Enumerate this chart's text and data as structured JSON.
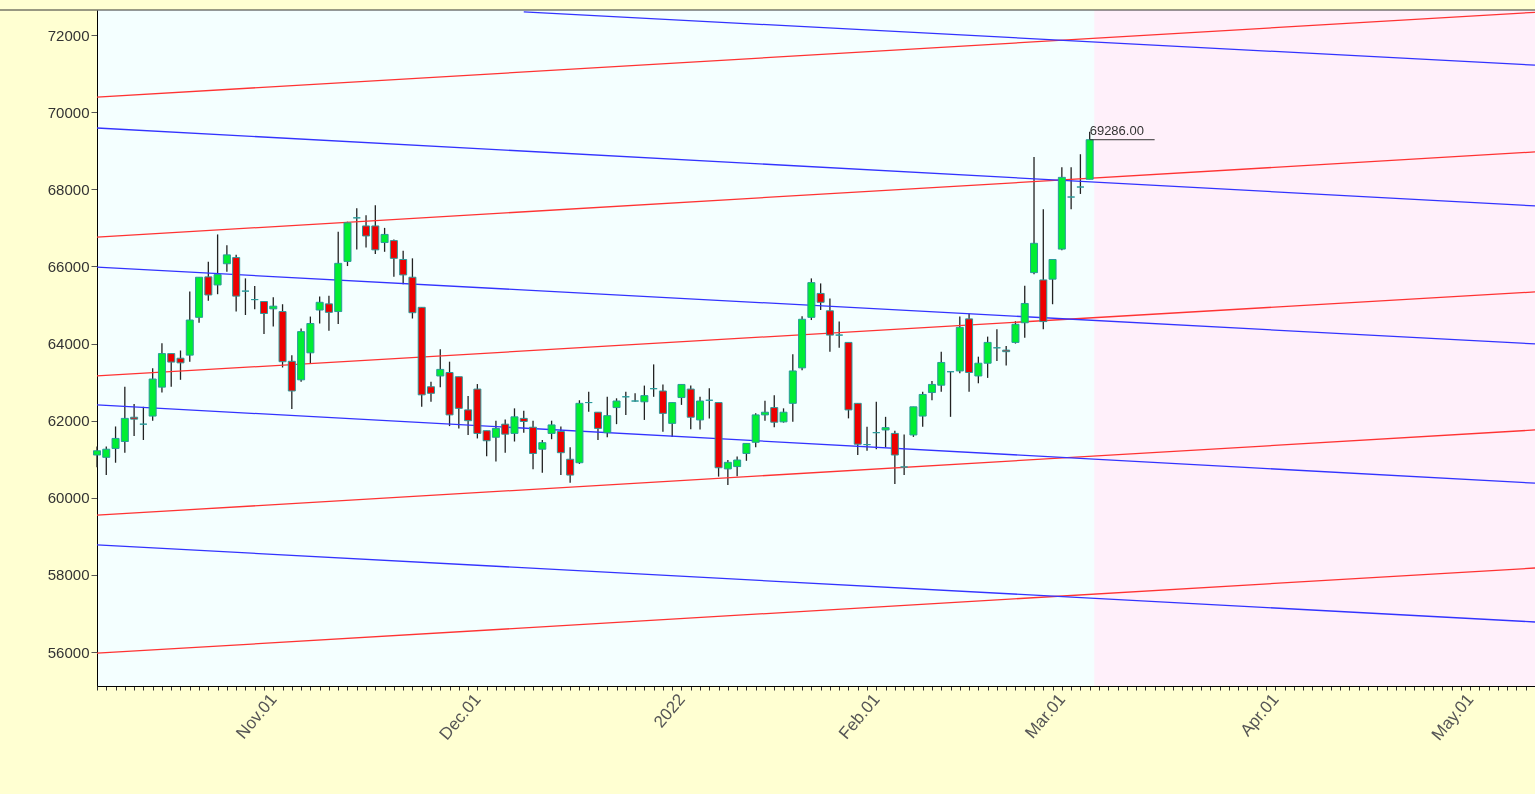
{
  "chart_data": {
    "type": "candlestick",
    "categories": [
      null,
      null,
      null,
      null,
      null,
      null,
      null,
      null,
      null,
      null,
      null,
      null,
      null,
      null,
      null,
      null,
      null,
      null,
      null,
      "Nov.01",
      null,
      null,
      null,
      null,
      null,
      null,
      null,
      null,
      null,
      null,
      null,
      null,
      null,
      null,
      null,
      null,
      null,
      null,
      null,
      null,
      null,
      "Dec.01",
      null,
      null,
      null,
      null,
      null,
      null,
      null,
      null,
      null,
      null,
      null,
      null,
      null,
      null,
      null,
      null,
      null,
      null,
      null,
      null,
      null,
      "2022",
      null,
      null,
      null,
      null,
      null,
      null,
      null,
      null,
      null,
      null,
      null,
      null,
      null,
      null,
      null,
      null,
      null,
      null,
      null,
      null,
      "Feb.01",
      null,
      null,
      null,
      null,
      null,
      null,
      null,
      null,
      null,
      null,
      null,
      null,
      null,
      null,
      null,
      null,
      null,
      null,
      null,
      "Mar.01",
      null,
      null,
      null,
      null,
      null,
      null,
      null,
      null,
      null,
      null,
      null,
      null,
      null,
      null,
      null,
      null,
      null,
      null,
      null,
      null,
      null,
      null,
      "Apr.01",
      null,
      null,
      null,
      null,
      null,
      null,
      null,
      null,
      null,
      null,
      null,
      null,
      null,
      null,
      null,
      null,
      null,
      null,
      null,
      null,
      "May.01",
      null,
      null,
      null,
      null,
      null,
      null,
      null
    ],
    "colors": [
      "#00ee33",
      "#00ee33",
      "#00ee33",
      "#00ee33",
      "#ee0000",
      "#339999",
      "#00ee33",
      "#00ee33",
      "#ee0000",
      "#ee0000",
      "#00ee33",
      "#00ee33",
      "#ee0000",
      "#00ee33",
      "#00ee33",
      "#ee0000",
      "#339999",
      "#339999",
      "#ee0000",
      "#00ee33",
      "#ee0000",
      "#ee0000",
      "#00ee33",
      "#00ee33",
      "#00ee33",
      "#ee0000",
      "#00ee33",
      "#00ee33",
      "#339999",
      "#ee0000",
      "#ee0000",
      "#00ee33",
      "#ee0000",
      "#ee0000",
      "#ee0000",
      "#ee0000",
      "#ee0000",
      "#00ee33",
      "#ee0000",
      "#ee0000",
      "#ee0000",
      "#ee0000",
      "#ee0000",
      "#00ee33",
      "#ee0000",
      "#00ee33",
      "#ee0000",
      "#ee0000",
      "#00ee33",
      "#00ee33",
      "#ee0000",
      "#ee0000",
      "#00ee33",
      "#339999",
      "#ee0000",
      "#00ee33",
      "#00ee33",
      "#339999",
      "#339999",
      "#00ee33",
      "#339999",
      "#ee0000",
      "#00ee33",
      "#00ee33",
      "#ee0000",
      "#00ee33",
      "#339999",
      "#ee0000",
      "#00ee33",
      "#00ee33",
      "#00ee33",
      "#00ee33",
      "#00ee33",
      "#ee0000",
      "#00ee33",
      "#00ee33",
      "#00ee33",
      "#00ee33",
      "#ee0000",
      "#ee0000",
      "#339999",
      "#ee0000",
      "#ee0000",
      "#339999",
      "#339999",
      "#00ee33",
      "#ee0000",
      "#339999",
      "#00ee33",
      "#00ee33",
      "#00ee33",
      "#00ee33",
      "#339999",
      "#00ee33",
      "#ee0000",
      "#00ee33",
      "#00ee33",
      "#339999",
      "#ee0000",
      "#00ee33",
      "#00ee33",
      "#00ee33",
      "#ee0000",
      "#00ee33",
      "#00ee33",
      "#339999",
      "#339999",
      "#00ee33",
      null,
      null,
      null,
      null,
      null,
      null,
      null,
      null,
      null,
      null,
      null,
      null,
      null,
      null,
      null,
      null,
      null,
      null,
      null,
      null,
      null,
      null,
      null,
      null,
      null,
      null,
      null,
      null,
      null,
      null,
      null,
      null,
      null,
      null,
      null,
      null,
      null,
      null,
      null,
      null,
      null,
      null,
      null,
      null,
      null,
      null,
      null,
      null
    ],
    "ohlc": [
      [
        61110,
        61330,
        60790,
        61220
      ],
      [
        61050,
        61330,
        60590,
        61260
      ],
      [
        61280,
        61850,
        60910,
        61540
      ],
      [
        61460,
        62880,
        61170,
        62060
      ],
      [
        62090,
        62430,
        61600,
        62040
      ],
      [
        61910,
        62360,
        61500,
        61910
      ],
      [
        62120,
        63360,
        62000,
        63080
      ],
      [
        62870,
        64010,
        62730,
        63740
      ],
      [
        63740,
        63740,
        62880,
        63520
      ],
      [
        63620,
        63820,
        63060,
        63500
      ],
      [
        63700,
        65350,
        63530,
        64610
      ],
      [
        64680,
        65720,
        64540,
        65720
      ],
      [
        65730,
        66120,
        65110,
        65260
      ],
      [
        65520,
        66830,
        65280,
        65790
      ],
      [
        66070,
        66550,
        65860,
        66300
      ],
      [
        66230,
        66300,
        64830,
        65230
      ],
      [
        65360,
        65690,
        64740,
        65360
      ],
      [
        65140,
        65490,
        64890,
        65140
      ],
      [
        65090,
        65090,
        64250,
        64780
      ],
      [
        64900,
        65200,
        64440,
        64970
      ],
      [
        64830,
        65020,
        63380,
        63530
      ],
      [
        63540,
        63700,
        62300,
        62770
      ],
      [
        63060,
        64390,
        63010,
        64310
      ],
      [
        63760,
        64700,
        63490,
        64520
      ],
      [
        64870,
        65220,
        64520,
        65070
      ],
      [
        65030,
        65240,
        64330,
        64810
      ],
      [
        64830,
        66900,
        64510,
        66080
      ],
      [
        66130,
        67160,
        66010,
        67130
      ],
      [
        67260,
        67510,
        66440,
        67260
      ],
      [
        67050,
        67330,
        66490,
        66790
      ],
      [
        67050,
        67590,
        66320,
        66430
      ],
      [
        66620,
        67000,
        66380,
        66830
      ],
      [
        66670,
        66700,
        65730,
        66210
      ],
      [
        66180,
        66410,
        65540,
        65780
      ],
      [
        65720,
        66210,
        64650,
        64800
      ],
      [
        64940,
        64940,
        62360,
        62670
      ],
      [
        62880,
        63010,
        62490,
        62710
      ],
      [
        63160,
        63850,
        62870,
        63330
      ],
      [
        63250,
        63530,
        61860,
        62150
      ],
      [
        63140,
        63140,
        61800,
        62320
      ],
      [
        62280,
        62640,
        61630,
        62000
      ],
      [
        62820,
        62950,
        61540,
        61670
      ],
      [
        61740,
        61740,
        61080,
        61480
      ],
      [
        61570,
        62000,
        60940,
        61800
      ],
      [
        61910,
        62030,
        61170,
        61650
      ],
      [
        61670,
        62320,
        61460,
        62100
      ],
      [
        62060,
        62260,
        61690,
        61980
      ],
      [
        61830,
        62000,
        60740,
        61150
      ],
      [
        61260,
        61500,
        60650,
        61430
      ],
      [
        61670,
        62000,
        61520,
        61890
      ],
      [
        61720,
        61850,
        60590,
        61170
      ],
      [
        61000,
        61310,
        60390,
        60590
      ],
      [
        60910,
        62530,
        60880,
        62450
      ],
      [
        62470,
        62750,
        62230,
        62470
      ],
      [
        62220,
        62220,
        61500,
        61800
      ],
      [
        61690,
        62620,
        61570,
        62130
      ],
      [
        62340,
        62580,
        61910,
        62510
      ],
      [
        62620,
        62750,
        62150,
        62620
      ],
      [
        62510,
        62710,
        62490,
        62510
      ],
      [
        62490,
        62910,
        62020,
        62650
      ],
      [
        62830,
        63460,
        62620,
        62830
      ],
      [
        62770,
        62940,
        61710,
        62190
      ],
      [
        61930,
        62470,
        61580,
        62470
      ],
      [
        62600,
        62940,
        62410,
        62940
      ],
      [
        62820,
        62910,
        61780,
        62090
      ],
      [
        62020,
        62620,
        61770,
        62510
      ],
      [
        62530,
        62840,
        62060,
        62530
      ],
      [
        62470,
        62470,
        60550,
        60780
      ],
      [
        60750,
        60980,
        60330,
        60920
      ],
      [
        60810,
        61070,
        60560,
        60980
      ],
      [
        61150,
        61410,
        60960,
        61410
      ],
      [
        61440,
        62190,
        61310,
        62150
      ],
      [
        62150,
        62520,
        62000,
        62220
      ],
      [
        62340,
        62660,
        61830,
        61960
      ],
      [
        61970,
        62320,
        61950,
        62220
      ],
      [
        62450,
        63720,
        61970,
        63290
      ],
      [
        63370,
        64710,
        63310,
        64630
      ],
      [
        64680,
        65690,
        64610,
        65580
      ],
      [
        65300,
        65560,
        64870,
        65070
      ],
      [
        64850,
        65170,
        63790,
        64220
      ],
      [
        64220,
        64570,
        63890,
        64220
      ],
      [
        64030,
        64030,
        62060,
        62280
      ],
      [
        62450,
        62450,
        61110,
        61390
      ],
      [
        61380,
        61840,
        61220,
        61380
      ],
      [
        61690,
        62490,
        61260,
        61690
      ],
      [
        61760,
        62100,
        61310,
        61820
      ],
      [
        61670,
        61740,
        60360,
        61110
      ],
      [
        60800,
        61640,
        60590,
        60800
      ],
      [
        61630,
        62360,
        61580,
        62360
      ],
      [
        62120,
        62750,
        61840,
        62680
      ],
      [
        62730,
        63030,
        62530,
        62940
      ],
      [
        62920,
        63790,
        62750,
        63510
      ],
      [
        63270,
        63280,
        62100,
        63270
      ],
      [
        63290,
        64700,
        63230,
        64420
      ],
      [
        64640,
        64780,
        62750,
        63250
      ],
      [
        63160,
        63660,
        62970,
        63490
      ],
      [
        63490,
        64180,
        63110,
        64030
      ],
      [
        63890,
        64370,
        63550,
        63890
      ],
      [
        63830,
        63940,
        63430,
        63790
      ],
      [
        64030,
        64580,
        64000,
        64500
      ],
      [
        64540,
        65500,
        64150,
        65040
      ],
      [
        65840,
        68840,
        65800,
        66600
      ],
      [
        65650,
        67480,
        64370,
        64570
      ],
      [
        65670,
        66180,
        65020,
        66180
      ],
      [
        66450,
        68570,
        66420,
        68310
      ],
      [
        67800,
        68570,
        67480,
        67800
      ],
      [
        68060,
        68910,
        67880,
        68060
      ],
      [
        68260,
        69490,
        68260,
        69286
      ],
      null,
      null,
      null,
      null,
      null,
      null,
      null,
      null,
      null,
      null,
      null,
      null,
      null,
      null,
      null,
      null,
      null,
      null,
      null,
      null,
      null,
      null,
      null,
      null,
      null,
      null,
      null,
      null,
      null,
      null,
      null,
      null,
      null,
      null,
      null,
      null,
      null,
      null,
      null,
      null,
      null,
      null,
      null,
      null,
      null,
      null,
      null,
      null
    ],
    "series": [
      {
        "type": "line",
        "color": "#ff3333",
        "values": [
          55970,
          null,
          null,
          null,
          null,
          null,
          null,
          null,
          null,
          null,
          null,
          null,
          null,
          null,
          null,
          null,
          null,
          null,
          null,
          null,
          null,
          null,
          null,
          null,
          null,
          null,
          null,
          null,
          null,
          null,
          null,
          null,
          null,
          null,
          null,
          null,
          null,
          null,
          null,
          null,
          null,
          null,
          null,
          null,
          null,
          null,
          null,
          null,
          null,
          null,
          null,
          null,
          null,
          null,
          null,
          null,
          null,
          null,
          null,
          null,
          null,
          null,
          null,
          null,
          null,
          null,
          null,
          null,
          null,
          null,
          null,
          null,
          null,
          null,
          null,
          null,
          null,
          null,
          null,
          null,
          null,
          null,
          null,
          null,
          null,
          null,
          null,
          null,
          null,
          null,
          null,
          null,
          null,
          null,
          null,
          null,
          null,
          null,
          null,
          null,
          null,
          null,
          null,
          null,
          null,
          null,
          null,
          null,
          null,
          null,
          null,
          null,
          null,
          null,
          null,
          null,
          null,
          null,
          null,
          null,
          null,
          null,
          null,
          null,
          null,
          null,
          null,
          null,
          null,
          null,
          null,
          null,
          null,
          null,
          null,
          null,
          null,
          null,
          null,
          null,
          null,
          null,
          null,
          null,
          null,
          null,
          null,
          null,
          null,
          null,
          null,
          null,
          null,
          null,
          null,
          58180
        ]
      },
      {
        "type": "line",
        "color": "#ff3333",
        "values": [
          59550,
          null,
          null,
          null,
          null,
          null,
          null,
          null,
          null,
          null,
          null,
          null,
          null,
          null,
          null,
          null,
          null,
          null,
          null,
          null,
          null,
          null,
          null,
          null,
          null,
          null,
          null,
          null,
          null,
          null,
          null,
          null,
          null,
          null,
          null,
          null,
          null,
          null,
          null,
          null,
          null,
          null,
          null,
          null,
          null,
          null,
          null,
          null,
          null,
          null,
          null,
          null,
          null,
          null,
          null,
          null,
          null,
          null,
          null,
          null,
          null,
          null,
          null,
          null,
          null,
          null,
          null,
          null,
          null,
          null,
          null,
          null,
          null,
          null,
          null,
          null,
          null,
          null,
          null,
          null,
          null,
          null,
          null,
          null,
          null,
          null,
          null,
          null,
          null,
          null,
          null,
          null,
          null,
          null,
          null,
          null,
          null,
          null,
          null,
          null,
          null,
          null,
          null,
          null,
          null,
          null,
          null,
          null,
          null,
          null,
          null,
          null,
          null,
          null,
          null,
          null,
          null,
          null,
          null,
          null,
          null,
          null,
          null,
          null,
          null,
          null,
          null,
          null,
          null,
          null,
          null,
          null,
          null,
          null,
          null,
          null,
          null,
          null,
          null,
          null,
          null,
          null,
          null,
          null,
          null,
          null,
          null,
          null,
          null,
          null,
          null,
          null,
          null,
          null,
          null,
          61760
        ]
      },
      {
        "type": "line",
        "color": "#ff3333",
        "values": [
          63160,
          null,
          null,
          null,
          null,
          null,
          null,
          null,
          null,
          null,
          null,
          null,
          null,
          null,
          null,
          null,
          null,
          null,
          null,
          null,
          null,
          null,
          null,
          null,
          null,
          null,
          null,
          null,
          null,
          null,
          null,
          null,
          null,
          null,
          null,
          null,
          null,
          null,
          null,
          null,
          null,
          null,
          null,
          null,
          null,
          null,
          null,
          null,
          null,
          null,
          null,
          null,
          null,
          null,
          null,
          null,
          null,
          null,
          null,
          null,
          null,
          null,
          null,
          null,
          null,
          null,
          null,
          null,
          null,
          null,
          null,
          null,
          null,
          null,
          null,
          null,
          null,
          null,
          null,
          null,
          null,
          null,
          null,
          null,
          null,
          null,
          null,
          null,
          null,
          null,
          null,
          null,
          null,
          null,
          null,
          null,
          null,
          null,
          null,
          null,
          null,
          null,
          null,
          null,
          null,
          null,
          null,
          null,
          null,
          null,
          null,
          null,
          null,
          null,
          null,
          null,
          null,
          null,
          null,
          null,
          null,
          null,
          null,
          null,
          null,
          null,
          null,
          null,
          null,
          null,
          null,
          null,
          null,
          null,
          null,
          null,
          null,
          null,
          null,
          null,
          null,
          null,
          null,
          null,
          null,
          null,
          null,
          null,
          null,
          null,
          null,
          null,
          null,
          null,
          null,
          65340
        ]
      },
      {
        "type": "line",
        "color": "#ff3333",
        "values": [
          66760,
          null,
          null,
          null,
          null,
          null,
          null,
          null,
          null,
          null,
          null,
          null,
          null,
          null,
          null,
          null,
          null,
          null,
          null,
          null,
          null,
          null,
          null,
          null,
          null,
          null,
          null,
          null,
          null,
          null,
          null,
          null,
          null,
          null,
          null,
          null,
          null,
          null,
          null,
          null,
          null,
          null,
          null,
          null,
          null,
          null,
          null,
          null,
          null,
          null,
          null,
          null,
          null,
          null,
          null,
          null,
          null,
          null,
          null,
          null,
          null,
          null,
          null,
          null,
          null,
          null,
          null,
          null,
          null,
          null,
          null,
          null,
          null,
          null,
          null,
          null,
          null,
          null,
          null,
          null,
          null,
          null,
          null,
          null,
          null,
          null,
          null,
          null,
          null,
          null,
          null,
          null,
          null,
          null,
          null,
          null,
          null,
          null,
          null,
          null,
          null,
          null,
          null,
          null,
          null,
          null,
          null,
          null,
          null,
          null,
          null,
          null,
          null,
          null,
          null,
          null,
          null,
          null,
          null,
          null,
          null,
          null,
          null,
          null,
          null,
          null,
          null,
          null,
          null,
          null,
          null,
          null,
          null,
          null,
          null,
          null,
          null,
          null,
          null,
          null,
          null,
          null,
          null,
          null,
          null,
          null,
          null,
          null,
          null,
          null,
          null,
          null,
          null,
          null,
          null,
          68970
        ]
      },
      {
        "type": "line",
        "color": "#ff3333",
        "values": [
          70390,
          null,
          null,
          null,
          null,
          null,
          null,
          null,
          null,
          null,
          null,
          null,
          null,
          null,
          null,
          null,
          null,
          null,
          null,
          null,
          null,
          null,
          null,
          null,
          null,
          null,
          null,
          null,
          null,
          null,
          null,
          null,
          null,
          null,
          null,
          null,
          null,
          null,
          null,
          null,
          null,
          null,
          null,
          null,
          null,
          null,
          null,
          null,
          null,
          null,
          null,
          null,
          null,
          null,
          null,
          null,
          null,
          null,
          null,
          null,
          null,
          null,
          null,
          null,
          null,
          null,
          null,
          null,
          null,
          null,
          null,
          null,
          null,
          null,
          null,
          null,
          null,
          null,
          null,
          null,
          null,
          null,
          null,
          null,
          null,
          null,
          null,
          null,
          null,
          null,
          null,
          null,
          null,
          null,
          null,
          null,
          null,
          null,
          null,
          null,
          null,
          null,
          null,
          null,
          null,
          null,
          null,
          null,
          null,
          null,
          null,
          null,
          null,
          null,
          null,
          null,
          null,
          null,
          null,
          null,
          null,
          null,
          null,
          null,
          null,
          null,
          null,
          null,
          null,
          null,
          null,
          null,
          null,
          null,
          null,
          null,
          null,
          null,
          null,
          null,
          null,
          null,
          null,
          null,
          null,
          null,
          null,
          null,
          null,
          null,
          null,
          null,
          null,
          null,
          null,
          72590
        ]
      },
      {
        "type": "line",
        "color": "#3333ff",
        "values": [
          58780,
          null,
          null,
          null,
          null,
          null,
          null,
          null,
          null,
          null,
          null,
          null,
          null,
          null,
          null,
          null,
          null,
          null,
          null,
          null,
          null,
          null,
          null,
          null,
          null,
          null,
          null,
          null,
          null,
          null,
          null,
          null,
          null,
          null,
          null,
          null,
          null,
          null,
          null,
          null,
          null,
          null,
          null,
          null,
          null,
          null,
          null,
          null,
          null,
          null,
          null,
          null,
          null,
          null,
          null,
          null,
          null,
          null,
          null,
          null,
          null,
          null,
          null,
          null,
          null,
          null,
          null,
          null,
          null,
          null,
          null,
          null,
          null,
          null,
          null,
          null,
          null,
          null,
          null,
          null,
          null,
          null,
          null,
          null,
          null,
          null,
          null,
          null,
          null,
          null,
          null,
          null,
          null,
          null,
          null,
          null,
          null,
          null,
          null,
          null,
          null,
          null,
          null,
          null,
          null,
          null,
          null,
          null,
          null,
          null,
          null,
          null,
          null,
          null,
          null,
          null,
          null,
          null,
          null,
          null,
          null,
          null,
          null,
          null,
          null,
          null,
          null,
          null,
          null,
          null,
          null,
          null,
          null,
          null,
          null,
          null,
          null,
          null,
          null,
          null,
          null,
          null,
          null,
          null,
          null,
          null,
          null,
          null,
          null,
          null,
          null,
          null,
          null,
          null,
          null,
          56780
        ]
      },
      {
        "type": "line",
        "color": "#3333ff",
        "values": [
          62410,
          null,
          null,
          null,
          null,
          null,
          null,
          null,
          null,
          null,
          null,
          null,
          null,
          null,
          null,
          null,
          null,
          null,
          null,
          null,
          null,
          null,
          null,
          null,
          null,
          null,
          null,
          null,
          null,
          null,
          null,
          null,
          null,
          null,
          null,
          null,
          null,
          null,
          null,
          null,
          null,
          null,
          null,
          null,
          null,
          null,
          null,
          null,
          null,
          null,
          null,
          null,
          null,
          null,
          null,
          null,
          null,
          null,
          null,
          null,
          null,
          null,
          null,
          null,
          null,
          null,
          null,
          null,
          null,
          null,
          null,
          null,
          null,
          null,
          null,
          null,
          null,
          null,
          null,
          null,
          null,
          null,
          null,
          null,
          null,
          null,
          null,
          null,
          null,
          null,
          null,
          null,
          null,
          null,
          null,
          null,
          null,
          null,
          null,
          null,
          null,
          null,
          null,
          null,
          null,
          null,
          null,
          null,
          null,
          null,
          null,
          null,
          null,
          null,
          null,
          null,
          null,
          null,
          null,
          null,
          null,
          null,
          null,
          null,
          null,
          null,
          null,
          null,
          null,
          null,
          null,
          null,
          null,
          null,
          null,
          null,
          null,
          null,
          null,
          null,
          null,
          null,
          null,
          null,
          null,
          null,
          null,
          null,
          null,
          null,
          null,
          null,
          null,
          null,
          null,
          60380
        ]
      },
      {
        "type": "line",
        "color": "#3333ff",
        "values": [
          65980,
          null,
          null,
          null,
          null,
          null,
          null,
          null,
          null,
          null,
          null,
          null,
          null,
          null,
          null,
          null,
          null,
          null,
          null,
          null,
          null,
          null,
          null,
          null,
          null,
          null,
          null,
          null,
          null,
          null,
          null,
          null,
          null,
          null,
          null,
          null,
          null,
          null,
          null,
          null,
          null,
          null,
          null,
          null,
          null,
          null,
          null,
          null,
          null,
          null,
          null,
          null,
          null,
          null,
          null,
          null,
          null,
          null,
          null,
          null,
          null,
          null,
          null,
          null,
          null,
          null,
          null,
          null,
          null,
          null,
          null,
          null,
          null,
          null,
          null,
          null,
          null,
          null,
          null,
          null,
          null,
          null,
          null,
          null,
          null,
          null,
          null,
          null,
          null,
          null,
          null,
          null,
          null,
          null,
          null,
          null,
          null,
          null,
          null,
          null,
          null,
          null,
          null,
          null,
          null,
          null,
          null,
          null,
          null,
          null,
          null,
          null,
          null,
          null,
          null,
          null,
          null,
          null,
          null,
          null,
          null,
          null,
          null,
          null,
          null,
          null,
          null,
          null,
          null,
          null,
          null,
          null,
          null,
          null,
          null,
          null,
          null,
          null,
          null,
          null,
          null,
          null,
          null,
          null,
          null,
          null,
          null,
          null,
          null,
          null,
          null,
          null,
          null,
          null,
          null,
          63990
        ]
      },
      {
        "type": "line",
        "color": "#3333ff",
        "values": [
          69590,
          null,
          null,
          null,
          null,
          null,
          null,
          null,
          null,
          null,
          null,
          null,
          null,
          null,
          null,
          null,
          null,
          null,
          null,
          null,
          null,
          null,
          null,
          null,
          null,
          null,
          null,
          null,
          null,
          null,
          null,
          null,
          null,
          null,
          null,
          null,
          null,
          null,
          null,
          null,
          null,
          null,
          null,
          null,
          null,
          null,
          null,
          null,
          null,
          null,
          null,
          null,
          null,
          null,
          null,
          null,
          null,
          null,
          null,
          null,
          null,
          null,
          null,
          null,
          null,
          null,
          null,
          null,
          null,
          null,
          null,
          null,
          null,
          null,
          null,
          null,
          null,
          null,
          null,
          null,
          null,
          null,
          null,
          null,
          null,
          null,
          null,
          null,
          null,
          null,
          null,
          null,
          null,
          null,
          null,
          null,
          null,
          null,
          null,
          null,
          null,
          null,
          null,
          null,
          null,
          null,
          null,
          null,
          null,
          null,
          null,
          null,
          null,
          null,
          null,
          null,
          null,
          null,
          null,
          null,
          null,
          null,
          null,
          null,
          null,
          null,
          null,
          null,
          null,
          null,
          null,
          null,
          null,
          null,
          null,
          null,
          null,
          null,
          null,
          null,
          null,
          null,
          null,
          null,
          null,
          null,
          null,
          null,
          null,
          null,
          null,
          null,
          null,
          null,
          null,
          67570
        ]
      },
      {
        "type": "line",
        "color": "#3333ff",
        "values": [
          null,
          null,
          null,
          null,
          null,
          null,
          null,
          null,
          null,
          null,
          null,
          null,
          null,
          null,
          null,
          null,
          null,
          null,
          null,
          null,
          null,
          null,
          null,
          null,
          null,
          null,
          null,
          null,
          null,
          null,
          null,
          null,
          null,
          null,
          null,
          null,
          null,
          null,
          null,
          null,
          null,
          null,
          null,
          null,
          null,
          null,
          72600,
          null,
          null,
          null,
          null,
          null,
          null,
          null,
          null,
          null,
          null,
          null,
          null,
          null,
          null,
          null,
          null,
          null,
          null,
          null,
          null,
          null,
          null,
          null,
          null,
          null,
          null,
          null,
          null,
          null,
          null,
          null,
          null,
          null,
          null,
          null,
          null,
          null,
          null,
          null,
          null,
          null,
          null,
          null,
          null,
          null,
          null,
          null,
          null,
          null,
          null,
          null,
          null,
          null,
          null,
          null,
          null,
          null,
          null,
          null,
          null,
          null,
          null,
          null,
          null,
          null,
          null,
          null,
          null,
          null,
          null,
          null,
          null,
          null,
          null,
          null,
          null,
          null,
          null,
          null,
          null,
          null,
          null,
          null,
          null,
          null,
          null,
          null,
          null,
          null,
          null,
          null,
          null,
          null,
          null,
          null,
          null,
          null,
          null,
          null,
          null,
          null,
          null,
          null,
          null,
          null,
          null,
          null,
          null,
          71220
        ]
      }
    ],
    "annotations": [
      "69286.00"
    ],
    "ylim": [
      55120,
      72650
    ],
    "yticks": [
      56000,
      58000,
      60000,
      62000,
      64000,
      66000,
      68000,
      70000,
      72000
    ],
    "grid": false
  }
}
